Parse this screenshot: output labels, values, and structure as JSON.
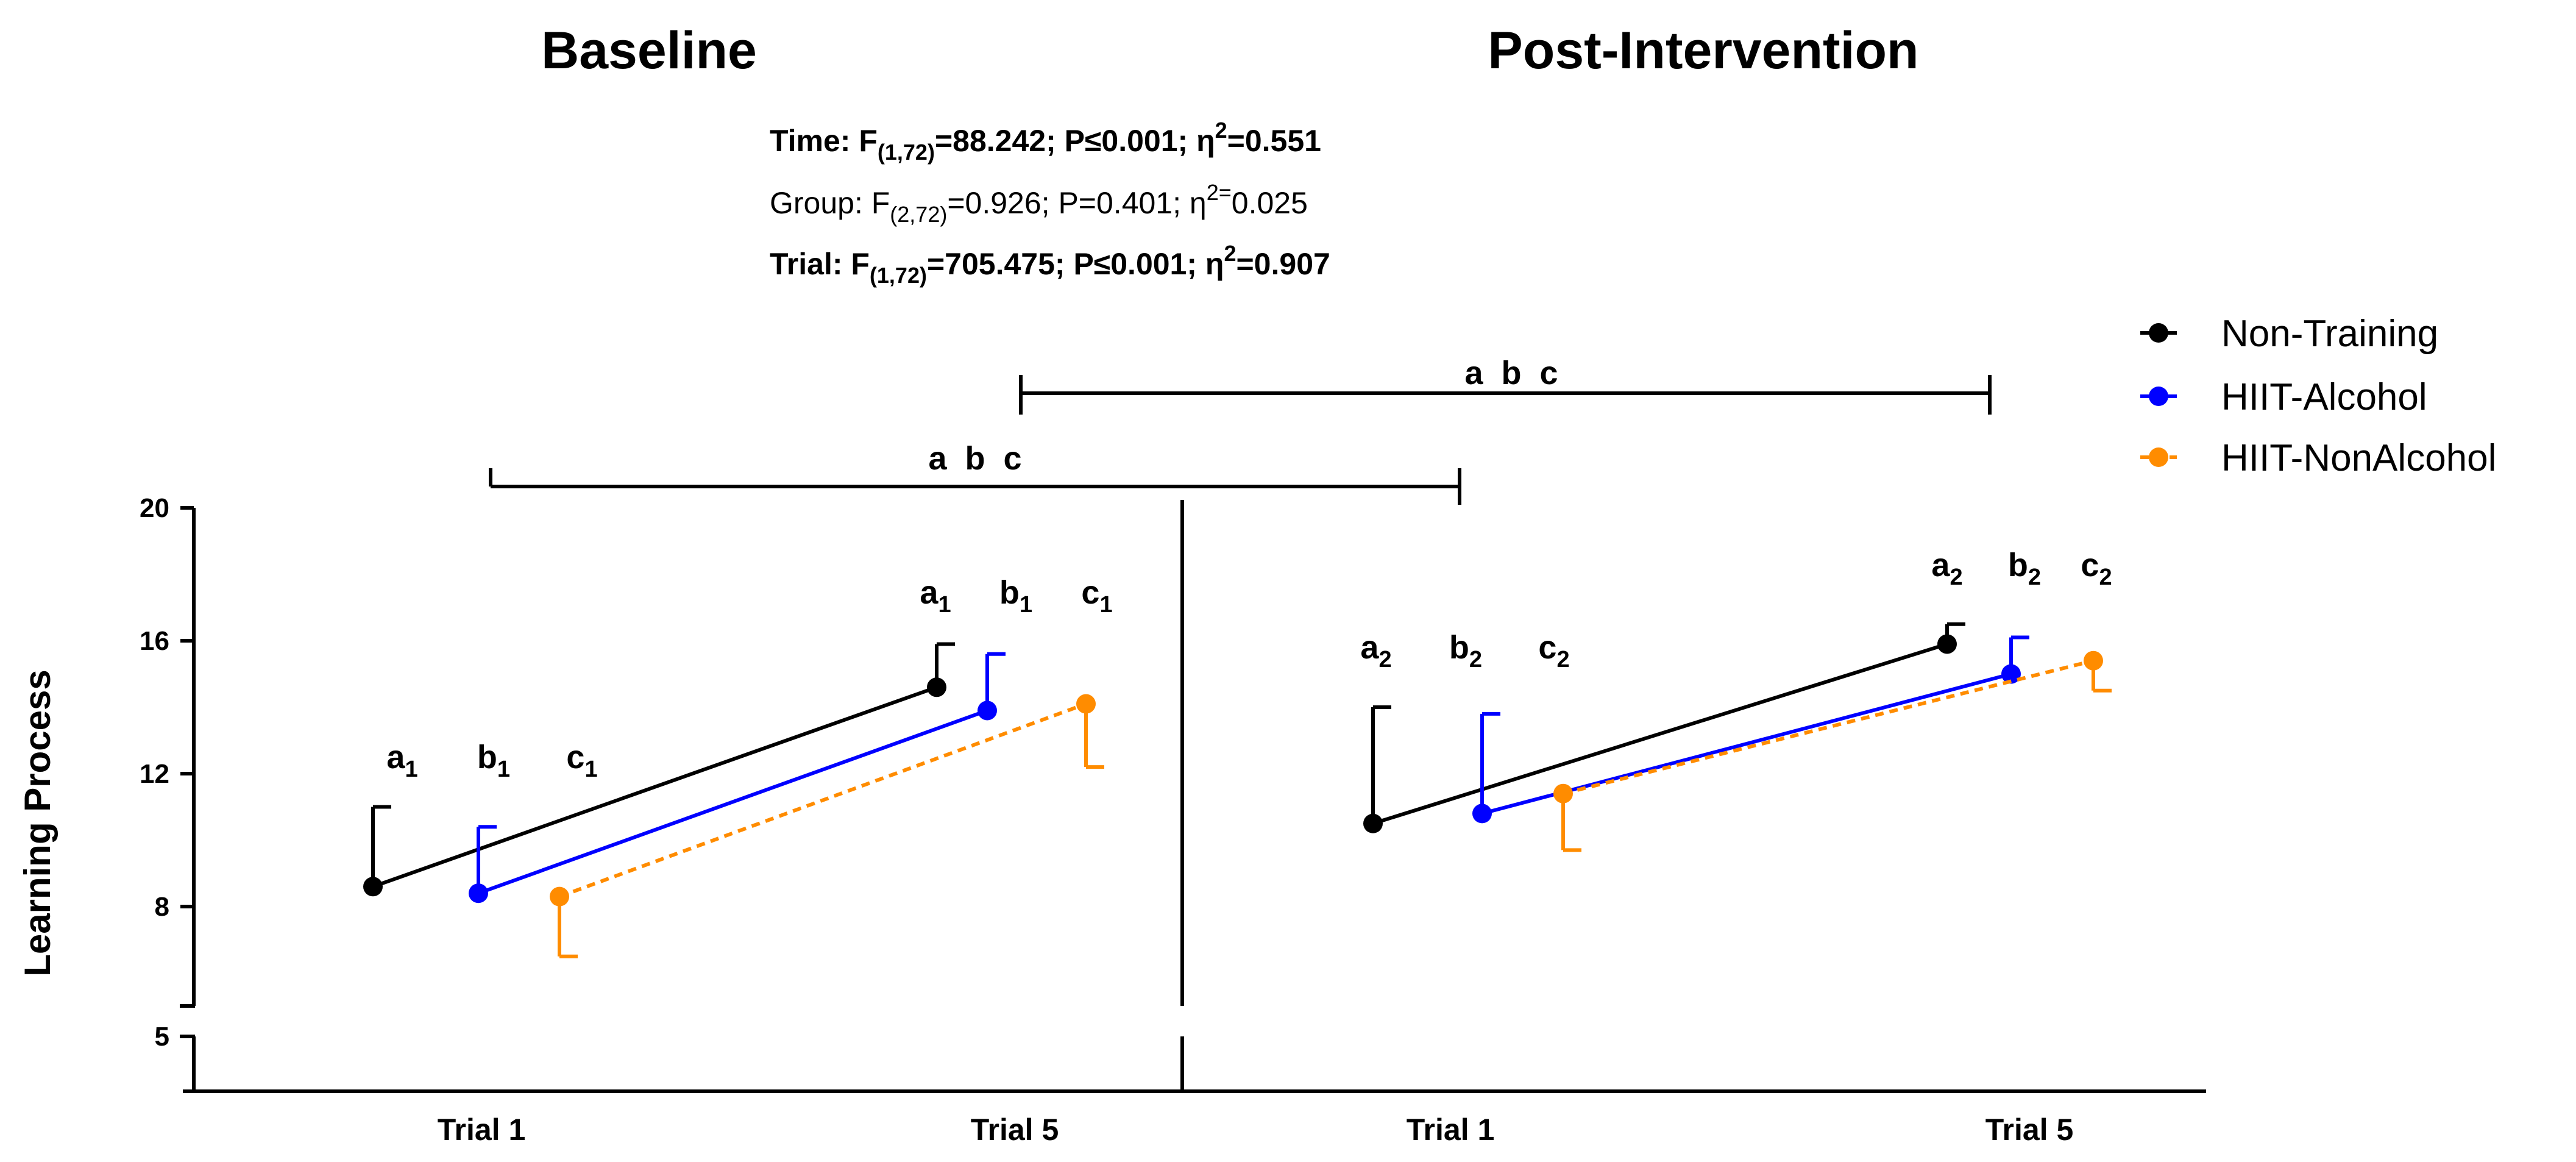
{
  "chart_data": {
    "type": "line",
    "ylabel": "Learning Process",
    "y_ticks": [
      "20",
      "16",
      "12",
      "8",
      "5"
    ],
    "y_axis_break": {
      "lower_tick": 5,
      "upper_start": 7
    },
    "ylim": [
      5,
      20
    ],
    "categories": [
      "Trial 1",
      "Trial 5"
    ],
    "panels": [
      {
        "title": "Baseline",
        "x_labels": [
          "Trial 1",
          "Trial 5"
        ],
        "series": [
          {
            "name": "Non-Training",
            "color": "#000000",
            "dash": "solid",
            "values": [
              8.6,
              14.6
            ],
            "errors": [
              2.4,
              1.3
            ],
            "error_dir": [
              "up",
              "up"
            ]
          },
          {
            "name": "HIIT-Alcohol",
            "color": "#0000ff",
            "dash": "solid",
            "values": [
              8.4,
              13.9
            ],
            "errors": [
              2.0,
              1.7
            ],
            "error_dir": [
              "up",
              "up"
            ]
          },
          {
            "name": "HIIT-NonAlcohol",
            "color": "#ff8c00",
            "dash": "dashed",
            "values": [
              8.3,
              14.1
            ],
            "errors": [
              1.8,
              1.9
            ],
            "error_dir": [
              "down",
              "down"
            ]
          }
        ],
        "annotations": [
          {
            "base": "a",
            "sub": "1"
          },
          {
            "base": "b",
            "sub": "1"
          },
          {
            "base": "c",
            "sub": "1"
          },
          {
            "base": "a",
            "sub": "1"
          },
          {
            "base": "b",
            "sub": "1"
          },
          {
            "base": "c",
            "sub": "1"
          }
        ]
      },
      {
        "title": "Post-Intervention",
        "x_labels": [
          "Trial 1",
          "Trial 5"
        ],
        "series": [
          {
            "name": "Non-Training",
            "color": "#000000",
            "dash": "solid",
            "values": [
              10.5,
              15.9
            ],
            "errors": [
              3.5,
              0.6
            ],
            "error_dir": [
              "up",
              "up"
            ]
          },
          {
            "name": "HIIT-Alcohol",
            "color": "#0000ff",
            "dash": "solid",
            "values": [
              10.8,
              15.0
            ],
            "errors": [
              3.0,
              1.1
            ],
            "error_dir": [
              "up",
              "up"
            ]
          },
          {
            "name": "HIIT-NonAlcohol",
            "color": "#ff8c00",
            "dash": "dashed",
            "values": [
              11.4,
              15.4
            ],
            "errors": [
              1.7,
              0.9
            ],
            "error_dir": [
              "down",
              "down"
            ]
          }
        ],
        "annotations": [
          {
            "base": "a",
            "sub": "2"
          },
          {
            "base": "b",
            "sub": "2"
          },
          {
            "base": "c",
            "sub": "2"
          },
          {
            "base": "a",
            "sub": "2"
          },
          {
            "base": "b",
            "sub": "2"
          },
          {
            "base": "c",
            "sub": "2"
          }
        ]
      }
    ],
    "comparison_brackets": [
      {
        "label": "a  b  c",
        "from": "Baseline Trial 1",
        "to": "Post-Intervention Trial 1"
      },
      {
        "label": "a  b  c",
        "from": "Baseline Trial 5",
        "to": "Post-Intervention Trial 5"
      }
    ],
    "stats": [
      {
        "label": "Time: F",
        "sub": "(1,72)",
        "rest": "=88.242; P≤0.001; η",
        "sup": "2",
        "tail": "=0.551",
        "bold": true
      },
      {
        "label": "Group: F",
        "sub": "(2,72)",
        "rest": "=0.926; P=0.401; η",
        "sup": "2=",
        "tail": "0.025",
        "bold": false
      },
      {
        "label": "Trial: F",
        "sub": "(1,72)",
        "rest": "=705.475; P≤0.001; η",
        "sup": "2",
        "tail": "=0.907",
        "bold": true
      }
    ],
    "legend": {
      "position": "top-right",
      "entries": [
        {
          "name": "Non-Training",
          "color": "#000000",
          "dash": "solid"
        },
        {
          "name": "HIIT-Alcohol",
          "color": "#0000ff",
          "dash": "solid"
        },
        {
          "name": "HIIT-NonAlcohol",
          "color": "#ff8c00",
          "dash": "dashed"
        }
      ]
    }
  }
}
